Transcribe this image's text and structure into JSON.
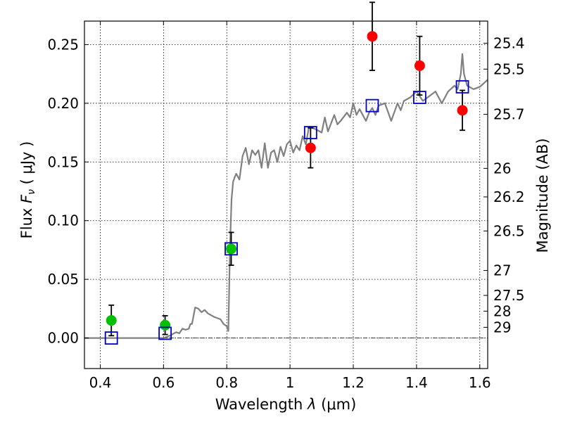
{
  "chart_data": {
    "type": "scatter",
    "xlabel": "Wavelength  λ (μm)",
    "ylabel": "Flux  F_ν  ( μJy )",
    "ylabel_parts": {
      "flux": "Flux",
      "nu_symbol": "F",
      "nu_sub": "ν",
      "unit_open": "( ",
      "unit": "μJy",
      "unit_close": " )"
    },
    "xlabel_parts": {
      "word": "Wavelength",
      "lambda": "λ",
      "unit": "(μm)"
    },
    "y2label": "Magnitude (AB)",
    "xlim": [
      0.35,
      1.625
    ],
    "ylim": [
      -0.026,
      0.27
    ],
    "grid": true,
    "x_ticks": [
      {
        "value": 0.4,
        "label": "0.4"
      },
      {
        "value": 0.6,
        "label": "0.6"
      },
      {
        "value": 0.8,
        "label": "0.8"
      },
      {
        "value": 1.0,
        "label": "1"
      },
      {
        "value": 1.2,
        "label": "1.2"
      },
      {
        "value": 1.4,
        "label": "1.4"
      },
      {
        "value": 1.6,
        "label": "1.6"
      }
    ],
    "y_ticks": [
      {
        "value": 0.0,
        "label": "0.00"
      },
      {
        "value": 0.05,
        "label": "0.05"
      },
      {
        "value": 0.1,
        "label": "0.10"
      },
      {
        "value": 0.15,
        "label": "0.15"
      },
      {
        "value": 0.2,
        "label": "0.20"
      },
      {
        "value": 0.25,
        "label": "0.25"
      }
    ],
    "mag_ticks": [
      {
        "value": 25.4,
        "label": "25.4"
      },
      {
        "value": 25.5,
        "label": "25.5"
      },
      {
        "value": 25.7,
        "label": "25.7"
      },
      {
        "value": 26,
        "label": "26"
      },
      {
        "value": 26.2,
        "label": "26.2"
      },
      {
        "value": 26.5,
        "label": "26.5"
      },
      {
        "value": 27,
        "label": "27"
      },
      {
        "value": 27.5,
        "label": "27.5"
      },
      {
        "value": 28,
        "label": "28"
      },
      {
        "value": 29,
        "label": "29"
      }
    ],
    "zero_line": 0.0,
    "series": [
      {
        "name": "model-spectrum",
        "kind": "line",
        "color": "#808080",
        "x": [
          0.35,
          0.6,
          0.62,
          0.64,
          0.65,
          0.66,
          0.67,
          0.68,
          0.685,
          0.69,
          0.7,
          0.71,
          0.72,
          0.73,
          0.74,
          0.76,
          0.78,
          0.79,
          0.8,
          0.805,
          0.81,
          0.815,
          0.82,
          0.825,
          0.83,
          0.84,
          0.85,
          0.86,
          0.87,
          0.88,
          0.89,
          0.9,
          0.91,
          0.92,
          0.93,
          0.94,
          0.95,
          0.96,
          0.97,
          0.98,
          0.99,
          1.0,
          1.01,
          1.02,
          1.03,
          1.04,
          1.05,
          1.06,
          1.08,
          1.1,
          1.11,
          1.12,
          1.14,
          1.15,
          1.16,
          1.18,
          1.19,
          1.2,
          1.21,
          1.22,
          1.24,
          1.25,
          1.26,
          1.27,
          1.28,
          1.3,
          1.32,
          1.34,
          1.35,
          1.36,
          1.38,
          1.4,
          1.42,
          1.44,
          1.46,
          1.48,
          1.5,
          1.52,
          1.53,
          1.54,
          1.545,
          1.55,
          1.56,
          1.58,
          1.6,
          1.625
        ],
        "y": [
          0.0,
          0.0,
          0.002,
          0.005,
          0.004,
          0.008,
          0.007,
          0.008,
          0.012,
          0.012,
          0.026,
          0.025,
          0.022,
          0.024,
          0.021,
          0.018,
          0.016,
          0.012,
          0.01,
          0.006,
          0.075,
          0.118,
          0.133,
          0.137,
          0.14,
          0.135,
          0.155,
          0.162,
          0.148,
          0.16,
          0.156,
          0.16,
          0.145,
          0.166,
          0.145,
          0.158,
          0.16,
          0.15,
          0.163,
          0.155,
          0.165,
          0.168,
          0.158,
          0.164,
          0.16,
          0.172,
          0.165,
          0.18,
          0.178,
          0.175,
          0.188,
          0.176,
          0.19,
          0.182,
          0.185,
          0.192,
          0.188,
          0.2,
          0.19,
          0.195,
          0.185,
          0.192,
          0.196,
          0.19,
          0.198,
          0.2,
          0.185,
          0.2,
          0.194,
          0.202,
          0.205,
          0.21,
          0.202,
          0.206,
          0.21,
          0.2,
          0.21,
          0.215,
          0.212,
          0.225,
          0.242,
          0.225,
          0.215,
          0.212,
          0.214,
          0.22
        ]
      },
      {
        "name": "red-photometry",
        "kind": "points",
        "marker": "circle",
        "color": "#ff0000",
        "points": [
          {
            "x": 1.065,
            "y": 0.162,
            "err": 0.017
          },
          {
            "x": 1.26,
            "y": 0.257,
            "err": 0.029
          },
          {
            "x": 1.41,
            "y": 0.232,
            "err": 0.025
          },
          {
            "x": 1.545,
            "y": 0.194,
            "err": 0.017
          }
        ]
      },
      {
        "name": "green-photometry",
        "kind": "points",
        "marker": "circle",
        "color": "#00c000",
        "points": [
          {
            "x": 0.435,
            "y": 0.015,
            "err": 0.013
          },
          {
            "x": 0.605,
            "y": 0.011,
            "err": 0.008
          },
          {
            "x": 0.814,
            "y": 0.076,
            "err": 0.014
          }
        ]
      },
      {
        "name": "model-bandpass-fluxes",
        "kind": "points",
        "marker": "open-square",
        "color": "#0000cc",
        "points": [
          {
            "x": 0.435,
            "y": 0.0
          },
          {
            "x": 0.605,
            "y": 0.004
          },
          {
            "x": 0.814,
            "y": 0.076
          },
          {
            "x": 1.065,
            "y": 0.175
          },
          {
            "x": 1.26,
            "y": 0.198
          },
          {
            "x": 1.41,
            "y": 0.205
          },
          {
            "x": 1.545,
            "y": 0.214
          }
        ]
      }
    ]
  }
}
